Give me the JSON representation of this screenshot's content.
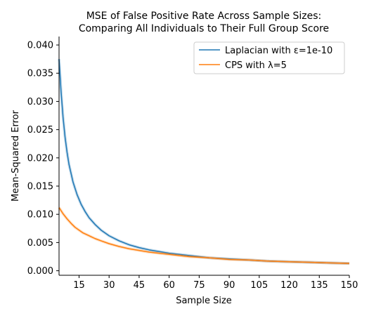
{
  "chart_data": {
    "type": "line",
    "title_line1": "MSE of False Positive Rate Across Sample Sizes:",
    "title_line2": "Comparing All Individuals to Their Full Group Score",
    "xlabel": "Sample Size",
    "ylabel": "Mean-Squared Error",
    "xlim": [
      5,
      150
    ],
    "ylim": [
      -0.0008,
      0.0415
    ],
    "xticks": [
      15,
      30,
      45,
      60,
      75,
      90,
      105,
      120,
      135,
      150
    ],
    "yticks": [
      0.0,
      0.005,
      0.01,
      0.015,
      0.02,
      0.025,
      0.03,
      0.035,
      0.04
    ],
    "ytick_labels": [
      "0.000",
      "0.005",
      "0.010",
      "0.015",
      "0.020",
      "0.025",
      "0.030",
      "0.035",
      "0.040"
    ],
    "legend_position": "top-right",
    "series": [
      {
        "name": "Laplacian with ε=1e-10",
        "color": "#1f77b4",
        "x": [
          5,
          6,
          7,
          8,
          9,
          10,
          12,
          14,
          16,
          18,
          20,
          23,
          26,
          30,
          35,
          40,
          45,
          50,
          60,
          70,
          80,
          90,
          100,
          110,
          120,
          130,
          140,
          150
        ],
        "y": [
          0.0375,
          0.0318,
          0.0272,
          0.0237,
          0.021,
          0.0188,
          0.0157,
          0.0135,
          0.0118,
          0.0105,
          0.0094,
          0.0082,
          0.0072,
          0.0062,
          0.0053,
          0.0046,
          0.0041,
          0.0037,
          0.0031,
          0.0027,
          0.0023,
          0.0021,
          0.0019,
          0.0017,
          0.0016,
          0.0015,
          0.0014,
          0.0013
        ]
      },
      {
        "name": "CPS with λ=5",
        "color": "#ff7f0e",
        "x": [
          5,
          7,
          9,
          11,
          13,
          15,
          17,
          20,
          23,
          26,
          30,
          35,
          40,
          45,
          50,
          60,
          70,
          80,
          90,
          100,
          110,
          120,
          130,
          140,
          150
        ],
        "y": [
          0.0112,
          0.0101,
          0.0092,
          0.0084,
          0.0077,
          0.0072,
          0.0067,
          0.0062,
          0.0057,
          0.0053,
          0.0048,
          0.0043,
          0.0039,
          0.0036,
          0.0033,
          0.0029,
          0.0025,
          0.0023,
          0.002,
          0.0019,
          0.0017,
          0.0016,
          0.0015,
          0.0014,
          0.0013
        ]
      }
    ]
  }
}
